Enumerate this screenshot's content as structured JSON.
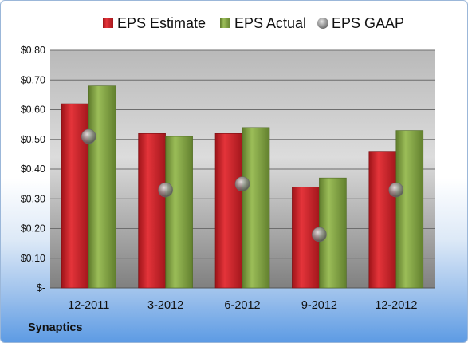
{
  "chart_data": {
    "type": "bar",
    "categories": [
      "12-2011",
      "3-2012",
      "6-2012",
      "9-2012",
      "12-2012"
    ],
    "series": [
      {
        "name": "EPS Estimate",
        "type": "bar",
        "values": [
          0.62,
          0.52,
          0.52,
          0.34,
          0.46
        ],
        "color": "#d9232b"
      },
      {
        "name": "EPS Actual",
        "type": "bar",
        "values": [
          0.68,
          0.51,
          0.54,
          0.37,
          0.53
        ],
        "color": "#8db04a"
      },
      {
        "name": "EPS GAAP",
        "type": "marker",
        "values": [
          0.51,
          0.33,
          0.35,
          0.18,
          0.33
        ],
        "color": "#9a9a9a"
      }
    ],
    "yticks": [
      0,
      0.1,
      0.2,
      0.3,
      0.4,
      0.5,
      0.6,
      0.7,
      0.8
    ],
    "ytick_labels": [
      "$-",
      "$0.10",
      "$0.20",
      "$0.30",
      "$0.40",
      "$0.50",
      "$0.60",
      "$0.70",
      "$0.80"
    ],
    "ylim": [
      0,
      0.8
    ],
    "grid": true,
    "legend_position": "top"
  },
  "company": "Synaptics"
}
